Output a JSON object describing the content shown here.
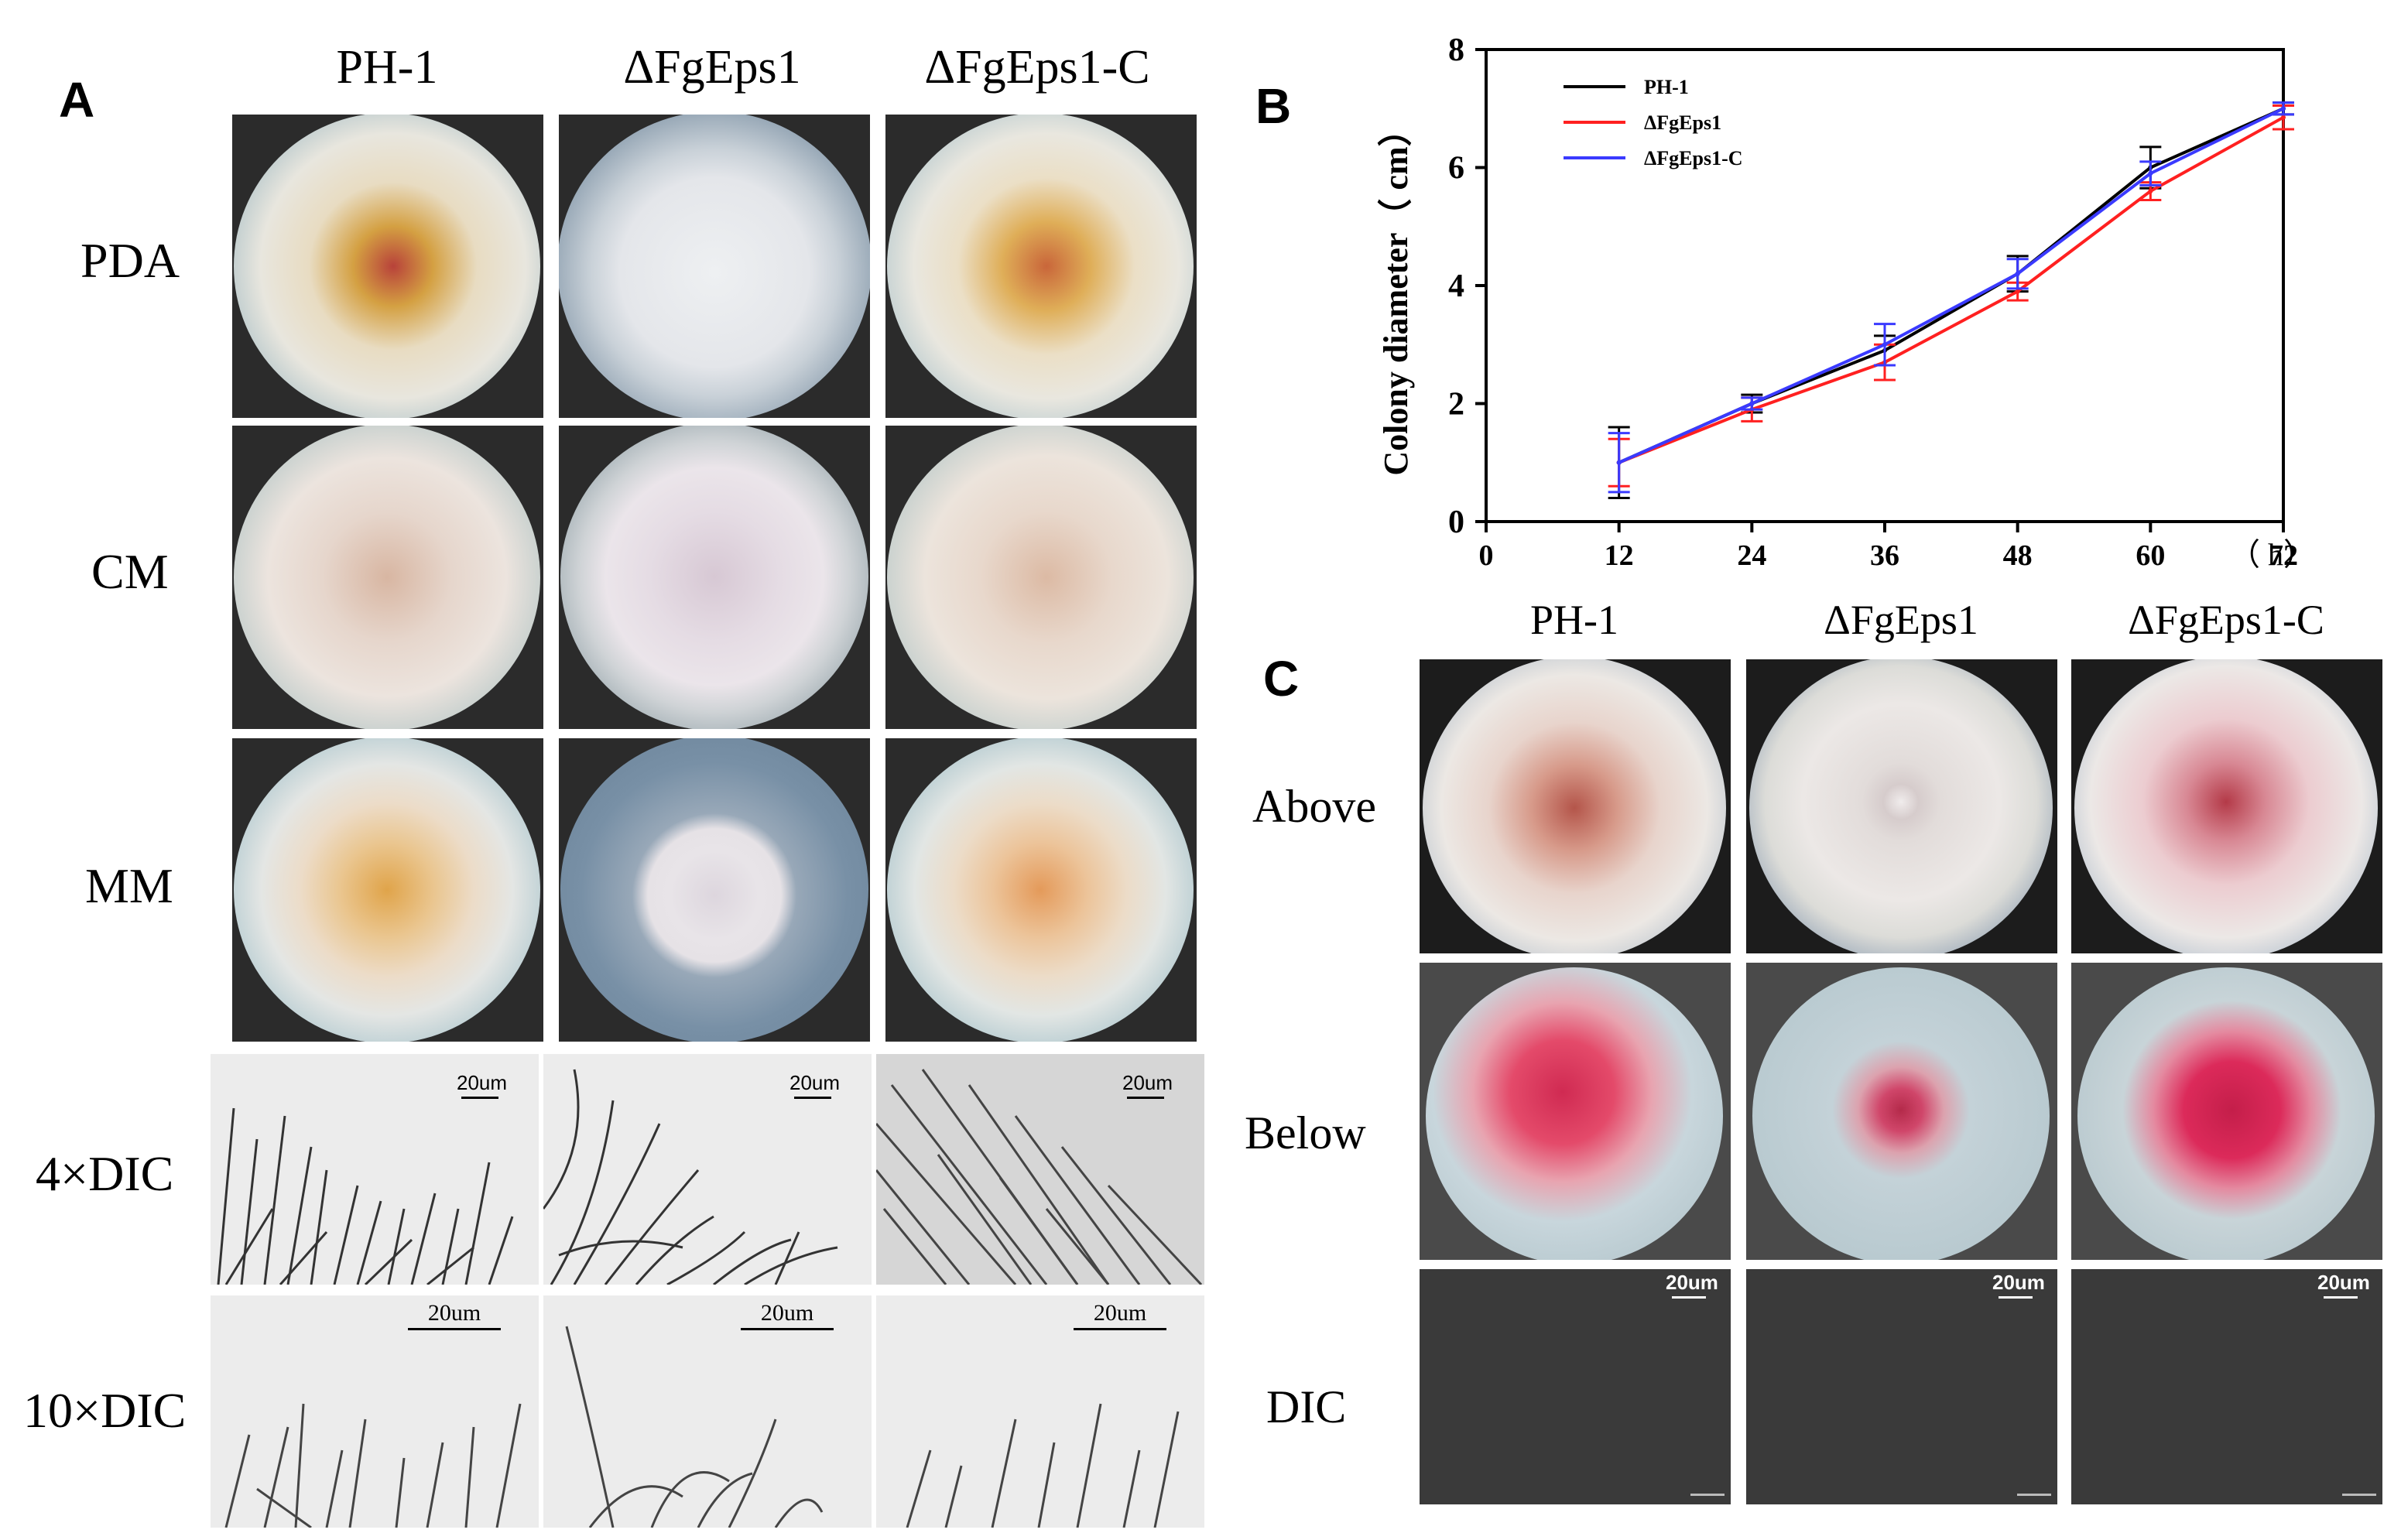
{
  "panel_labels": {
    "a": "A",
    "b": "B",
    "c": "C"
  },
  "panel_a": {
    "columns": [
      "PH-1",
      "ΔFgEps1",
      "ΔFgEps1-C"
    ],
    "rows": [
      "PDA",
      "CM",
      "MM",
      "4×DIC",
      "10×DIC"
    ],
    "scale_labels": {
      "dic4": "20um",
      "dic10": "20um"
    }
  },
  "panel_c": {
    "columns": [
      "PH-1",
      "ΔFgEps1",
      "ΔFgEps1-C"
    ],
    "rows": [
      "Above",
      "Below",
      "DIC"
    ],
    "scale_label": "20um"
  },
  "colors": {
    "ph1": "#000000",
    "mutant": "#ff2020",
    "complement": "#3a3aff"
  },
  "chart_data": {
    "type": "line",
    "title": "",
    "ylabel": "Colony diameter（ cm）",
    "x_unit_label": "（ h）",
    "x": [
      12,
      24,
      36,
      48,
      60,
      72
    ],
    "xlim": [
      0,
      72
    ],
    "xticks": [
      "0",
      "12",
      "24",
      "36",
      "48",
      "60",
      "72"
    ],
    "ylim": [
      0,
      8
    ],
    "yticks": [
      "0",
      "2",
      "4",
      "6",
      "8"
    ],
    "legend_position": "top-left",
    "series": [
      {
        "name": "PH-1",
        "color": "#000000",
        "values": [
          1.0,
          2.0,
          2.9,
          4.2,
          6.0,
          7.0
        ],
        "errors": [
          0.6,
          0.15,
          0.25,
          0.3,
          0.35,
          0.1
        ]
      },
      {
        "name": "ΔFgEps1",
        "color": "#ff2020",
        "values": [
          1.0,
          1.9,
          2.7,
          3.9,
          5.6,
          6.85
        ],
        "errors": [
          0.4,
          0.2,
          0.3,
          0.15,
          0.15,
          0.2
        ]
      },
      {
        "name": "ΔFgEps1-C",
        "color": "#3a3aff",
        "values": [
          1.0,
          2.0,
          3.0,
          4.2,
          5.9,
          7.0
        ],
        "errors": [
          0.5,
          0.1,
          0.35,
          0.25,
          0.2,
          0.1
        ]
      }
    ]
  }
}
